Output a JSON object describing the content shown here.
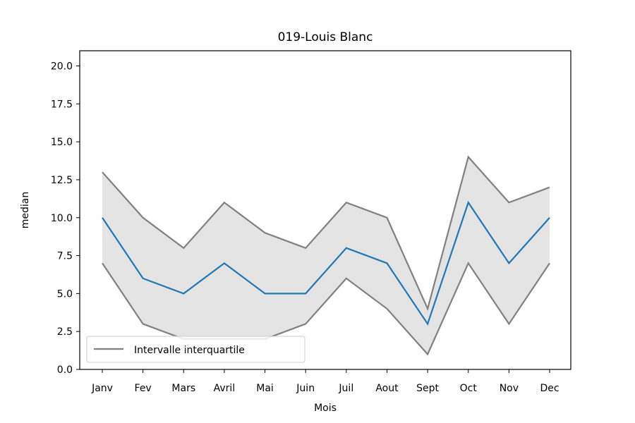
{
  "chart_data": {
    "type": "line",
    "title": "019-Louis Blanc",
    "xlabel": "Mois",
    "ylabel": "median",
    "categories": [
      "Janv",
      "Fev",
      "Mars",
      "Avril",
      "Mai",
      "Juin",
      "Juil",
      "Aout",
      "Sept",
      "Oct",
      "Nov",
      "Dec"
    ],
    "ylim": [
      0,
      21
    ],
    "yticks": [
      "0.0",
      "2.5",
      "5.0",
      "7.5",
      "10.0",
      "12.5",
      "15.0",
      "17.5",
      "20.0"
    ],
    "ytick_values": [
      0,
      2.5,
      5,
      7.5,
      10,
      12.5,
      15,
      17.5,
      20
    ],
    "grid": false,
    "legend_position": "lower-left",
    "series": [
      {
        "role": "median",
        "color": "#1f77b4",
        "values": [
          10,
          6,
          5,
          7,
          5,
          5,
          8,
          7,
          3,
          11,
          7,
          10
        ]
      },
      {
        "role": "q3",
        "color": "#808080",
        "values": [
          13,
          10,
          8,
          11,
          9,
          8,
          11,
          10,
          4,
          14,
          11,
          12
        ]
      },
      {
        "role": "q1",
        "color": "#808080",
        "values": [
          7,
          3,
          2,
          2,
          2,
          3,
          6,
          4,
          1,
          7,
          3,
          7
        ]
      }
    ],
    "band_fill": "#e4e4e4",
    "legend": [
      {
        "label": "Intervalle interquartile",
        "color": "#808080"
      }
    ]
  }
}
